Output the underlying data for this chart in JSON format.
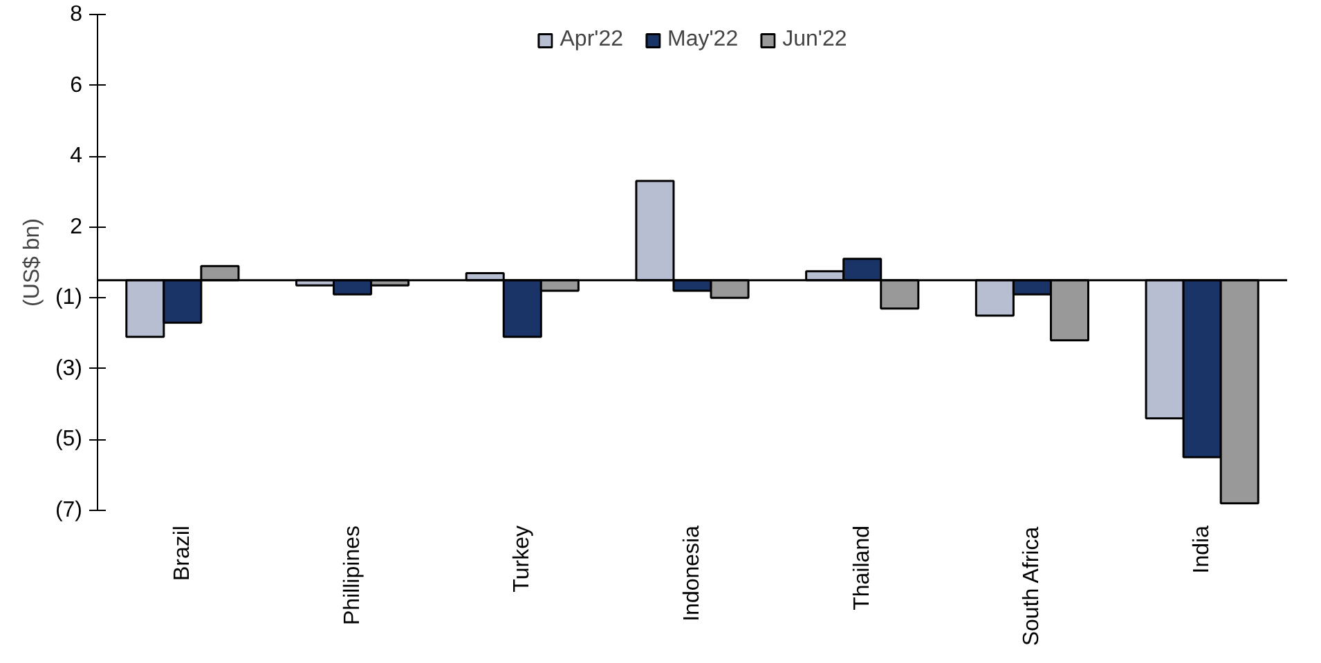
{
  "chart_data": {
    "type": "bar",
    "ylabel": "(US$ bn)",
    "categories": [
      "Brazil",
      "Phillipines",
      "Turkey",
      "Indonesia",
      "Thailand",
      "South Africa",
      "India"
    ],
    "series": [
      {
        "name": "Apr'22",
        "color": "#b8bed2",
        "values": [
          -1.6,
          -0.15,
          0.2,
          2.8,
          0.25,
          -1.0,
          -3.9
        ]
      },
      {
        "name": "May'22",
        "color": "#1b3468",
        "values": [
          -1.2,
          -0.4,
          -1.6,
          -0.3,
          0.6,
          -0.4,
          -5.0
        ]
      },
      {
        "name": "Jun'22",
        "color": "#999999",
        "values": [
          0.4,
          -0.15,
          -0.3,
          -0.5,
          -0.8,
          -1.7,
          -6.3
        ]
      }
    ],
    "ylim": [
      -6.5,
      7.5
    ],
    "yticks": [
      {
        "value": 7.5,
        "label": "8"
      },
      {
        "value": 5.5,
        "label": "6"
      },
      {
        "value": 3.5,
        "label": "4"
      },
      {
        "value": 1.5,
        "label": "2"
      },
      {
        "value": -0.5,
        "label": "(1)"
      },
      {
        "value": -2.5,
        "label": "(3)"
      },
      {
        "value": -4.5,
        "label": "(5)"
      },
      {
        "value": -6.5,
        "label": "(7)"
      }
    ],
    "grid": false,
    "legend": "top"
  }
}
